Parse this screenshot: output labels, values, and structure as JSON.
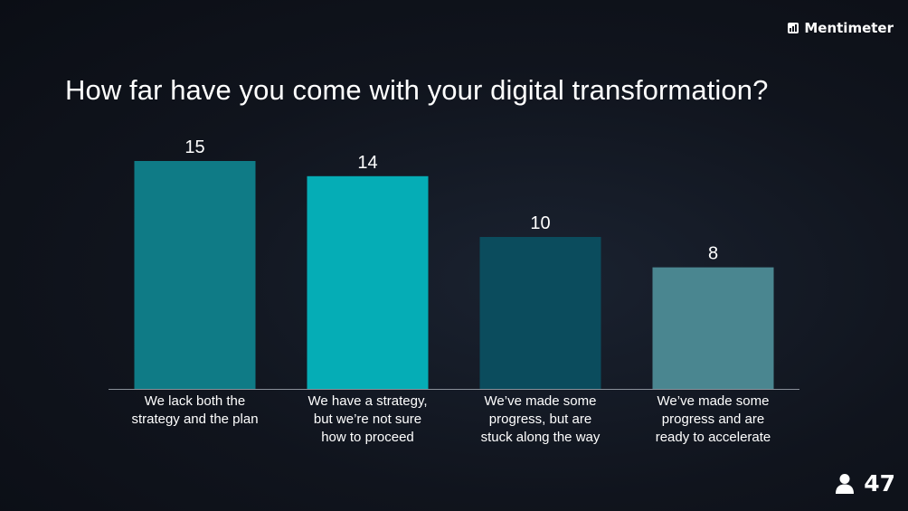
{
  "brand": {
    "name": "Mentimeter",
    "icon": "mentimeter-logo-icon"
  },
  "participants": {
    "count": "47",
    "icon": "person-icon"
  },
  "chart_data": {
    "type": "bar",
    "title": "How far have you come with your digital transformation?",
    "categories": [
      [
        "We lack both the",
        "strategy and the plan"
      ],
      [
        "We have a strategy,",
        "but we’re not sure",
        "how to proceed"
      ],
      [
        "We’ve made some",
        "progress, but are",
        "stuck along the way"
      ],
      [
        "We’ve made some",
        "progress and are",
        "ready to accelerate"
      ]
    ],
    "values": [
      15,
      14,
      10,
      8
    ],
    "colors": [
      "#0f7b86",
      "#05adb6",
      "#0b4c5d",
      "#4a8690"
    ],
    "xlabel": "",
    "ylabel": "",
    "grid": false,
    "legend": "none"
  }
}
